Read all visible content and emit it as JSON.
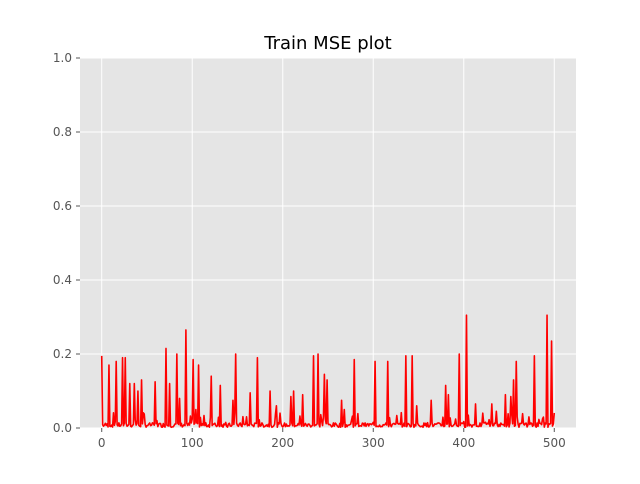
{
  "chart_data": {
    "type": "line",
    "title": "Train MSE plot",
    "xlabel": "",
    "ylabel": "",
    "xlim": [
      -24,
      524
    ],
    "ylim": [
      0,
      1
    ],
    "xticks": [
      0,
      100,
      200,
      300,
      400,
      500
    ],
    "yticks": [
      0.0,
      0.2,
      0.4,
      0.6,
      0.8,
      1.0
    ],
    "xtick_labels": [
      "0",
      "100",
      "200",
      "300",
      "400",
      "500"
    ],
    "ytick_labels": [
      "0.0",
      "0.2",
      "0.4",
      "0.6",
      "0.8",
      "1.0"
    ],
    "grid": true,
    "series": [
      {
        "color": "#ff0000",
        "spikes": [
          [
            0,
            0.195
          ],
          [
            8,
            0.17
          ],
          [
            16,
            0.18
          ],
          [
            23,
            0.19
          ],
          [
            26,
            0.19
          ],
          [
            31,
            0.12
          ],
          [
            36,
            0.12
          ],
          [
            40,
            0.1
          ],
          [
            44,
            0.13
          ],
          [
            59,
            0.125
          ],
          [
            71,
            0.215
          ],
          [
            75,
            0.12
          ],
          [
            83,
            0.2
          ],
          [
            86,
            0.08
          ],
          [
            93,
            0.265
          ],
          [
            101,
            0.185
          ],
          [
            104,
            0.05
          ],
          [
            107,
            0.17
          ],
          [
            121,
            0.14
          ],
          [
            131,
            0.115
          ],
          [
            145,
            0.075
          ],
          [
            148,
            0.2
          ],
          [
            164,
            0.095
          ],
          [
            172,
            0.19
          ],
          [
            186,
            0.1
          ],
          [
            193,
            0.06
          ],
          [
            197,
            0.04
          ],
          [
            209,
            0.085
          ],
          [
            212,
            0.1
          ],
          [
            222,
            0.09
          ],
          [
            234,
            0.195
          ],
          [
            239,
            0.2
          ],
          [
            246,
            0.145
          ],
          [
            249,
            0.13
          ],
          [
            265,
            0.075
          ],
          [
            268,
            0.05
          ],
          [
            279,
            0.185
          ],
          [
            302,
            0.18
          ],
          [
            316,
            0.18
          ],
          [
            336,
            0.195
          ],
          [
            343,
            0.195
          ],
          [
            348,
            0.06
          ],
          [
            364,
            0.075
          ],
          [
            380,
            0.115
          ],
          [
            383,
            0.09
          ],
          [
            395,
            0.2
          ],
          [
            403,
            0.305
          ],
          [
            413,
            0.065
          ],
          [
            421,
            0.04
          ],
          [
            431,
            0.065
          ],
          [
            436,
            0.045
          ],
          [
            446,
            0.09
          ],
          [
            452,
            0.085
          ],
          [
            455,
            0.13
          ],
          [
            458,
            0.18
          ],
          [
            472,
            0.03
          ],
          [
            478,
            0.195
          ],
          [
            492,
            0.305
          ],
          [
            497,
            0.235
          ]
        ]
      }
    ]
  }
}
